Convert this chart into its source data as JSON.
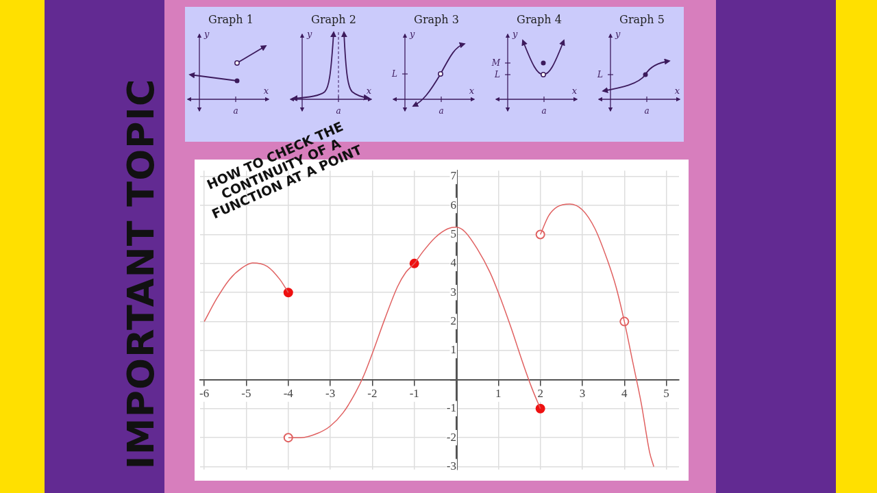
{
  "chart_data": [
    {
      "type": "other",
      "title": "Graph 1",
      "xlabel": "x",
      "ylabel": "y",
      "annotations": [
        "a"
      ]
    },
    {
      "type": "other",
      "title": "Graph 2",
      "xlabel": "x",
      "ylabel": "y",
      "annotations": [
        "a"
      ]
    },
    {
      "type": "other",
      "title": "Graph 3",
      "xlabel": "x",
      "ylabel": "y",
      "annotations": [
        "a",
        "L"
      ]
    },
    {
      "type": "other",
      "title": "Graph 4",
      "xlabel": "x",
      "ylabel": "y",
      "annotations": [
        "a",
        "M",
        "L"
      ]
    },
    {
      "type": "other",
      "title": "Graph 5",
      "xlabel": "x",
      "ylabel": "y",
      "annotations": [
        "a",
        "L"
      ]
    },
    {
      "type": "line",
      "title": "HOW TO CHECK THE CONTINUITY OF A FUNCTION AT A POINT",
      "subtitle": "IMPORTANT TOPIC",
      "xlim": [
        -6.1,
        5.3
      ],
      "ylim": [
        -3.1,
        7.2
      ],
      "xticks": [
        -6,
        -5,
        -4,
        -3,
        -2,
        -1,
        {
          "value": 0,
          "label": null
        },
        1,
        2,
        3,
        4,
        5
      ],
      "yticks": [
        -3,
        -2,
        -1,
        {
          "value": 0,
          "label": null
        },
        1,
        2,
        3,
        4,
        5,
        6,
        7
      ],
      "grid": true,
      "series": [
        {
          "color": "#e06060",
          "marker": "none",
          "x": [
            -6,
            -5.7,
            -5.4,
            -5.1,
            -4.85,
            -4.5,
            -4.2,
            -4
          ],
          "values": [
            2,
            2.8,
            3.45,
            3.85,
            4.02,
            3.9,
            3.45,
            3
          ]
        },
        {
          "color": "#e06060",
          "marker": "none",
          "x": [
            -4,
            -3.7,
            -3.3,
            -3,
            -2.7,
            -2.4,
            -2.2,
            -2,
            -1.7,
            -1.4,
            -1.2,
            -1,
            -0.8,
            -0.5,
            -0.2,
            0,
            0.2,
            0.5,
            0.8,
            1,
            1.3,
            1.6,
            1.8,
            2
          ],
          "values": [
            -2,
            -2,
            -1.85,
            -1.6,
            -1.15,
            -0.45,
            0.15,
            0.9,
            2.1,
            3.2,
            3.7,
            4,
            4.4,
            4.9,
            5.2,
            5.25,
            5.1,
            4.5,
            3.7,
            3,
            1.8,
            0.5,
            -0.3,
            -1
          ]
        },
        {
          "color": "#e06060",
          "marker": "none",
          "x": [
            2,
            2.2,
            2.4,
            2.7,
            3,
            3.3,
            3.6,
            3.8,
            4,
            4.2,
            4.4,
            4.6,
            4.7
          ],
          "values": [
            5,
            5.65,
            5.95,
            6.05,
            5.85,
            5.2,
            4.1,
            3.2,
            2,
            0.6,
            -0.8,
            -2.5,
            -3
          ]
        },
        {
          "type": "scatter",
          "marker": "circle",
          "color": "#ee1111",
          "x": [
            -4,
            -1,
            2
          ],
          "values": [
            3,
            4,
            -1
          ]
        },
        {
          "type": "scatter",
          "marker": "circle",
          "color": "#ffffff",
          "x": [
            -4,
            2,
            4
          ],
          "values": [
            -2,
            5,
            2
          ]
        }
      ]
    }
  ]
}
